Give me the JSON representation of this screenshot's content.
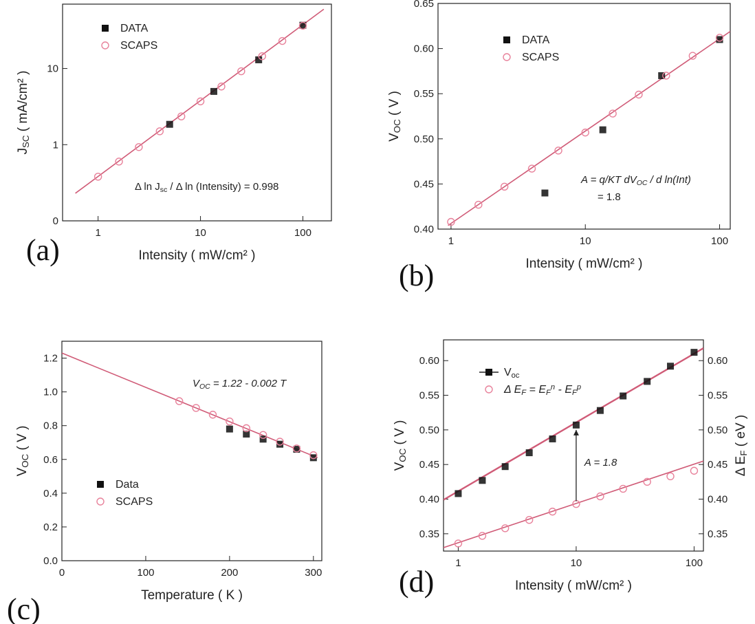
{
  "colors": {
    "fit": "#d05b77",
    "scaps": "#e8829b",
    "data": "#111111",
    "axis": "#222222"
  },
  "chart_data": [
    {
      "id": "a",
      "panel_label": "(a)",
      "type": "scatter",
      "xscale": "log",
      "yscale": "log",
      "xlim": [
        0.45,
        190
      ],
      "ylim": [
        0.1,
        70
      ],
      "xticks": [
        1,
        10,
        100
      ],
      "xtick_labels": [
        "1",
        "10",
        "100"
      ],
      "yticks": [
        0.1,
        1,
        10
      ],
      "ytick_labels": [
        "0",
        "1",
        "10"
      ],
      "xlabel": "Intensity ( mW/cm² )",
      "ylabel": "J_SC ( mA/cm² )",
      "legend": {
        "position": "top-left",
        "entries": [
          "DATA",
          "SCAPS"
        ]
      },
      "series": [
        {
          "name": "DATA",
          "marker": "square",
          "x": [
            5,
            13.5,
            37,
            100
          ],
          "y": [
            1.85,
            5.0,
            13.0,
            37
          ]
        },
        {
          "name": "SCAPS",
          "marker": "circle",
          "x": [
            1,
            1.6,
            2.5,
            4,
            6.5,
            10,
            16,
            25,
            40,
            63,
            100
          ],
          "y": [
            0.38,
            0.6,
            0.93,
            1.5,
            2.35,
            3.7,
            5.8,
            9.2,
            14.5,
            23,
            36.5
          ]
        }
      ],
      "fit": {
        "x": [
          0.6,
          160
        ],
        "y": [
          0.23,
          60
        ]
      },
      "annotation": "Δ ln J_sc / Δ ln (Intensity) = 0.998"
    },
    {
      "id": "b",
      "panel_label": "(b)",
      "type": "scatter",
      "xscale": "log",
      "yscale": "linear",
      "xlim": [
        0.8,
        120
      ],
      "ylim": [
        0.4,
        0.65
      ],
      "xticks": [
        1,
        10,
        100
      ],
      "xtick_labels": [
        "1",
        "10",
        "100"
      ],
      "yticks": [
        0.4,
        0.45,
        0.5,
        0.55,
        0.6,
        0.65
      ],
      "ytick_labels": [
        "0.40",
        "0.45",
        "0.50",
        "0.55",
        "0.60",
        "0.65"
      ],
      "xlabel": "Intensity ( mW/cm² )",
      "ylabel": "V_OC ( V )",
      "legend": {
        "position": "top-left",
        "entries": [
          "DATA",
          "SCAPS"
        ]
      },
      "series": [
        {
          "name": "DATA",
          "marker": "square",
          "x": [
            5,
            13.5,
            37,
            100
          ],
          "y": [
            0.44,
            0.51,
            0.57,
            0.61
          ]
        },
        {
          "name": "SCAPS",
          "marker": "circle",
          "x": [
            1,
            1.6,
            2.5,
            4,
            6.3,
            10,
            16,
            25,
            40,
            63,
            100
          ],
          "y": [
            0.408,
            0.427,
            0.447,
            0.467,
            0.487,
            0.507,
            0.528,
            0.549,
            0.57,
            0.592,
            0.612
          ]
        }
      ],
      "fit": {
        "x": [
          0.95,
          120
        ],
        "y": [
          0.404,
          0.619
        ]
      },
      "annotation": [
        "A = q/KT dV_OC / d ln(Int)",
        "= 1.8"
      ]
    },
    {
      "id": "c",
      "panel_label": "(c)",
      "type": "scatter",
      "xscale": "linear",
      "yscale": "linear",
      "xlim": [
        0,
        310
      ],
      "ylim": [
        0,
        1.3
      ],
      "xticks": [
        0,
        100,
        200,
        300
      ],
      "xtick_labels": [
        "0",
        "100",
        "200",
        "300"
      ],
      "yticks": [
        0,
        0.2,
        0.4,
        0.6,
        0.8,
        1.0,
        1.2
      ],
      "ytick_labels": [
        "0.0",
        "0.2",
        "0.4",
        "0.6",
        "0.8",
        "1.0",
        "1.2"
      ],
      "xlabel": "Temperature ( K )",
      "ylabel": "V_OC ( V )",
      "legend": {
        "position": "bottom-left",
        "entries": [
          "Data",
          "SCAPS"
        ]
      },
      "series": [
        {
          "name": "Data",
          "marker": "square",
          "x": [
            200,
            220,
            240,
            260,
            280,
            300
          ],
          "y": [
            0.78,
            0.75,
            0.72,
            0.69,
            0.66,
            0.61
          ]
        },
        {
          "name": "SCAPS",
          "marker": "circle",
          "x": [
            140,
            160,
            180,
            200,
            220,
            240,
            260,
            280,
            300
          ],
          "y": [
            0.945,
            0.905,
            0.865,
            0.825,
            0.785,
            0.745,
            0.705,
            0.665,
            0.625
          ]
        }
      ],
      "fit": {
        "x": [
          0,
          305
        ],
        "y": [
          1.23,
          0.61
        ]
      },
      "annotation": "V_OC = 1.22 - 0.002 T"
    },
    {
      "id": "d",
      "panel_label": "(d)",
      "type": "line",
      "xscale": "log",
      "yscale": "linear",
      "xlim": [
        0.75,
        120
      ],
      "ylim": [
        0.325,
        0.63
      ],
      "xticks": [
        1,
        10,
        100
      ],
      "xtick_labels": [
        "1",
        "10",
        "100"
      ],
      "yticks": [
        0.35,
        0.4,
        0.45,
        0.5,
        0.55,
        0.6
      ],
      "ytick_labels": [
        "0.35",
        "0.40",
        "0.45",
        "0.50",
        "0.55",
        "0.60"
      ],
      "y2ticks": [
        0.35,
        0.4,
        0.45,
        0.5,
        0.55,
        0.6
      ],
      "y2tick_labels": [
        "0.35",
        "0.40",
        "0.45",
        "0.50",
        "0.55",
        "0.60"
      ],
      "xlabel": "Intensity ( mW/cm² )",
      "ylabel": "V_OC ( V )",
      "y2label": "Δ E_F ( eV )",
      "legend": {
        "position": "top-left",
        "entries": [
          "V_oc",
          "Δ E_F = E_F^n - E_F^p"
        ]
      },
      "series": [
        {
          "name": "V_oc",
          "marker": "square",
          "x": [
            1,
            1.6,
            2.5,
            4,
            6.3,
            10,
            16,
            25,
            40,
            63,
            100
          ],
          "y": [
            0.408,
            0.427,
            0.447,
            0.467,
            0.487,
            0.507,
            0.528,
            0.549,
            0.57,
            0.592,
            0.612
          ]
        },
        {
          "name": "Δ E_F = E_F^n - E_F^p",
          "marker": "circle",
          "x": [
            1,
            1.6,
            2.5,
            4,
            6.3,
            10,
            16,
            25,
            40,
            63,
            100
          ],
          "y": [
            0.336,
            0.347,
            0.358,
            0.37,
            0.382,
            0.393,
            0.404,
            0.415,
            0.425,
            0.433,
            0.441
          ]
        }
      ],
      "fit": {
        "x": [
          0.75,
          120
        ],
        "y": [
          0.399,
          0.618
        ]
      },
      "fit2": {
        "x": [
          0.75,
          120
        ],
        "y": [
          0.33,
          0.455
        ]
      },
      "annotation": "A = 1.8"
    }
  ]
}
